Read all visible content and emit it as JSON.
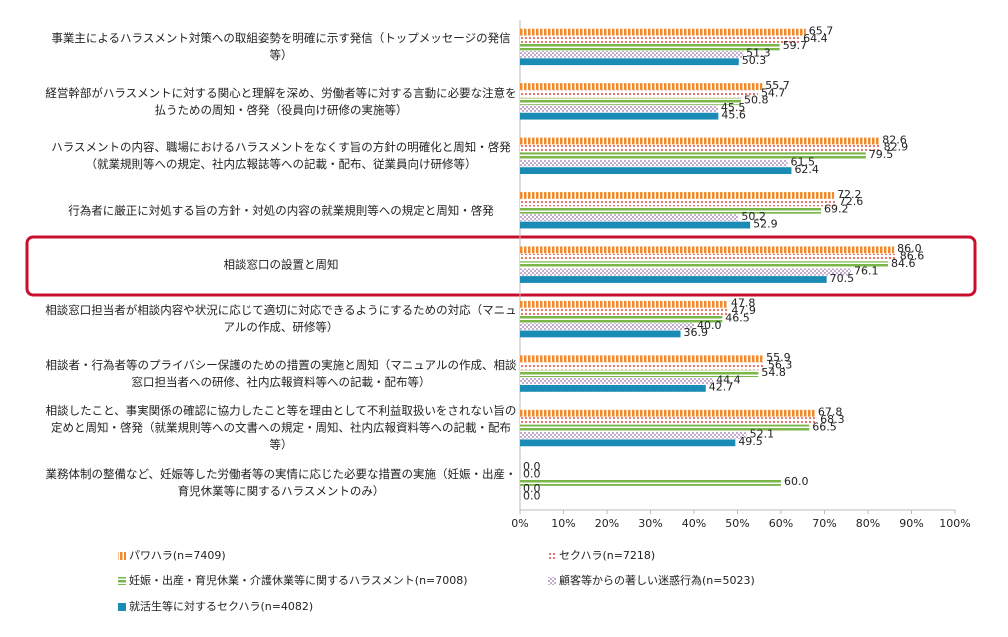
{
  "chart_data": {
    "type": "hbar",
    "categories": [
      "事業主によるハラスメント対策への取組姿勢を明確に示す発信（トップメッセージの発信等）",
      "経営幹部がハラスメントに対する関心と理解を深め、労働者等に対する言動に必要な注意を払うための周知・啓発（役員向け研修の実施等）",
      "ハラスメントの内容、職場におけるハラスメントをなくす旨の方針の明確化と周知・啓発（就業規則等への規定、社内広報誌等への記載・配布、従業員向け研修等）",
      "行為者に厳正に対処する旨の方針・対処の内容の就業規則等への規定と周知・啓発",
      "相談窓口の設置と周知",
      "相談窓口担当者が相談内容や状況に応じて適切に対応できるようにするための対応（マニュアルの作成、研修等）",
      "相談者・行為者等のプライバシー保護のための措置の実施と周知（マニュアルの作成、相談窓口担当者への研修、社内広報資料等への記載・配布等）",
      "相談したこと、事実関係の確認に協力したこと等を理由として不利益取扱いをされない旨の定めと周知・啓発（就業規則等への文書への規定・周知、社内広報資料等への記載・配布等）",
      "業務体制の整備など、妊娠等した労働者等の実情に応じた必要な措置の実施（妊娠・出産・育児休業等に関するハラスメントのみ）"
    ],
    "series": [
      {
        "name": "パワハラ(n=7409)",
        "color": "#f08a2c",
        "pattern": "vstripe",
        "values": [
          65.7,
          55.7,
          82.6,
          72.2,
          86,
          47.8,
          55.9,
          67.8,
          0
        ],
        "value_labels": [
          "65.7",
          "55.7",
          "82.6",
          "72.2",
          "86.0",
          "47.8",
          "55.9",
          "67.8",
          "0.0"
        ]
      },
      {
        "name": "セクハラ(n=7218)",
        "color": "#e04a3c",
        "pattern": "dots",
        "values": [
          64.4,
          54.7,
          82.9,
          72.6,
          86.6,
          47.9,
          56.3,
          68.3,
          0
        ],
        "value_labels": [
          "64.4",
          "54.7",
          "82.9",
          "72.6",
          "86.6",
          "47.9",
          "56.3",
          "68.3",
          "0.0"
        ]
      },
      {
        "name": "妊娠・出産・育児休業・介護休業等に関するハラスメント(n=7008)",
        "color": "#7ab648",
        "pattern": "hstripe",
        "values": [
          59.7,
          50.8,
          79.5,
          69.2,
          84.6,
          46.5,
          54.8,
          66.5,
          60
        ],
        "value_labels": [
          "59.7",
          "50.8",
          "79.5",
          "69.2",
          "84.6",
          "46.5",
          "54.8",
          "66.5",
          "60.0"
        ]
      },
      {
        "name": "顧客等からの著しい迷惑行為(n=5023)",
        "color": "#9b6fb0",
        "pattern": "fine",
        "values": [
          51.3,
          45.5,
          61.5,
          50.2,
          76.1,
          40,
          44.4,
          52.1,
          0
        ],
        "value_labels": [
          "51.3",
          "45.5",
          "61.5",
          "50.2",
          "76.1",
          "40.0",
          "44.4",
          "52.1",
          "0.0"
        ]
      },
      {
        "name": "就活生等に対するセクハラ(n=4082)",
        "color": "#1a8bb5",
        "pattern": "solid",
        "values": [
          50.3,
          45.6,
          62.4,
          52.9,
          70.5,
          36.9,
          42.7,
          49.5,
          0
        ],
        "value_labels": [
          "50.3",
          "45.6",
          "62.4",
          "52.9",
          "70.5",
          "36.9",
          "42.7",
          "49.5",
          "0.0"
        ]
      }
    ],
    "xlim": [
      0,
      100
    ],
    "xticks": [
      {
        "value": 0,
        "label": "0%"
      },
      {
        "value": 10,
        "label": "10%"
      },
      {
        "value": 20,
        "label": "20%"
      },
      {
        "value": 30,
        "label": "30%"
      },
      {
        "value": 40,
        "label": "40%"
      },
      {
        "value": 50,
        "label": "50%"
      },
      {
        "value": 60,
        "label": "60%"
      },
      {
        "value": 70,
        "label": "70%"
      },
      {
        "value": 80,
        "label": "80%"
      },
      {
        "value": 90,
        "label": "90%"
      },
      {
        "value": 100,
        "label": "100%"
      }
    ],
    "grid": false
  }
}
